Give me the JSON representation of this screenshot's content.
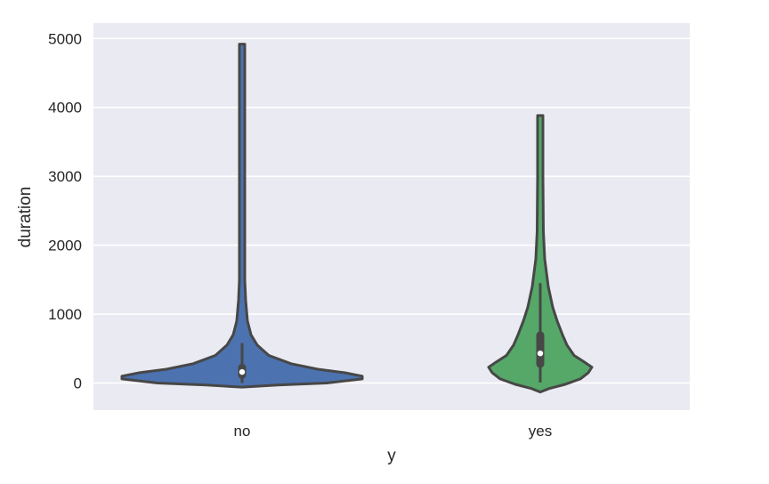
{
  "chart_data": {
    "type": "violin",
    "title": "",
    "xlabel": "y",
    "ylabel": "duration",
    "categories": [
      "no",
      "yes"
    ],
    "ylim": [
      -400,
      5200
    ],
    "yticks": [
      0,
      1000,
      2000,
      3000,
      4000,
      5000
    ],
    "ytick_labels": [
      "0",
      "1000",
      "2000",
      "3000",
      "4000",
      "5000"
    ],
    "grid": true,
    "legend": null,
    "series": [
      {
        "name": "no",
        "color": "#4c72b0",
        "max": 4918,
        "min": 0,
        "density_peak": 100,
        "box": {
          "q1": 60,
          "median": 160,
          "q3": 280,
          "whisker_low": 0,
          "whisker_high": 580
        }
      },
      {
        "name": "yes",
        "color": "#55a868",
        "max": 3881,
        "min": 8,
        "density_peak": 230,
        "box": {
          "q1": 220,
          "median": 430,
          "q3": 750,
          "whisker_low": 8,
          "whisker_high": 1450
        }
      }
    ]
  },
  "style": {
    "plot_bg": "#eaeaf2",
    "grid_color": "#ffffff",
    "outline_color": "#474747"
  }
}
